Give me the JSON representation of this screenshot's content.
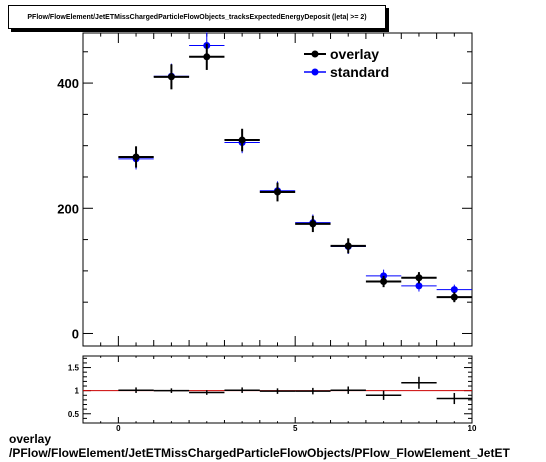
{
  "chart_data": {
    "type": "scatter",
    "title": "PFlow/FlowElement/JetETMissChargedParticleFlowObjects_tracksExpectedEnergyDeposit (|eta| >= 2)",
    "x_bins": [
      0,
      1,
      2,
      3,
      4,
      5,
      6,
      7,
      8,
      9,
      10
    ],
    "xlim": [
      -1,
      10
    ],
    "main_ylim": [
      -20,
      480
    ],
    "main_yticks": [
      "0",
      "200",
      "400"
    ],
    "main_ytick_values": [
      0,
      200,
      400
    ],
    "xticks": [
      "0",
      "5",
      "10"
    ],
    "xtick_values": [
      0,
      5,
      10
    ],
    "series": [
      {
        "name": "overlay",
        "color": "#000000",
        "values": [
          282,
          410,
          442,
          309,
          226,
          175,
          140,
          83,
          89,
          58
        ],
        "errors": [
          17,
          20,
          21,
          18,
          15,
          13,
          12,
          9,
          9,
          8
        ]
      },
      {
        "name": "standard",
        "color": "#0000ff",
        "values": [
          279,
          411,
          460,
          305,
          228,
          177,
          139,
          92,
          76,
          70
        ],
        "errors": [
          17,
          20,
          21,
          17,
          15,
          13,
          12,
          10,
          9,
          8
        ]
      }
    ],
    "ratio": {
      "ylim": [
        0.3,
        1.75
      ],
      "yticks": [
        "0.5",
        "1",
        "1.5"
      ],
      "ytick_values": [
        0.5,
        1,
        1.5
      ],
      "values": [
        1.01,
        1.0,
        0.96,
        1.01,
        0.99,
        0.99,
        1.01,
        0.9,
        1.17,
        0.83
      ],
      "errors": [
        0.06,
        0.05,
        0.05,
        0.06,
        0.06,
        0.07,
        0.08,
        0.1,
        0.13,
        0.12
      ],
      "reference": 1,
      "reference_color": "#cc0000"
    },
    "legend": {
      "placement": "top-right"
    }
  },
  "footer": {
    "line1": "overlay",
    "line2": "/PFlow/FlowElement/JetETMissChargedParticleFlowObjects/PFlow_FlowElement_JetET"
  }
}
